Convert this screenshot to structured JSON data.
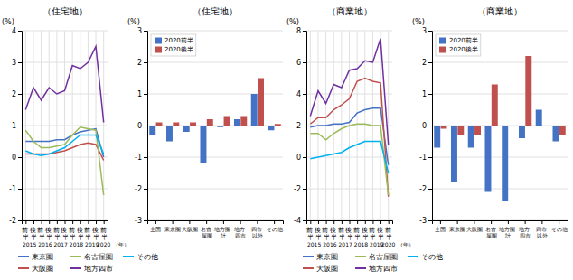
{
  "chart_data": [
    {
      "type": "line",
      "title": "（住宅地）",
      "ylabel": "(%)",
      "xlabel": "（年）",
      "annotations": [
        "2015",
        "2016",
        "2017",
        "2018",
        "2019",
        "2020"
      ],
      "categories": [
        "前\n半",
        "後\n半",
        "前\n半",
        "後\n半",
        "前\n半",
        "後\n半",
        "前\n半",
        "後\n半",
        "前\n半",
        "後\n半",
        "前\n半"
      ],
      "series": [
        {
          "name": "東京圏",
          "color": "#4472c4",
          "values": [
            0.5,
            0.5,
            0.5,
            0.5,
            0.55,
            0.55,
            0.7,
            0.8,
            0.85,
            0.9,
            0.0
          ]
        },
        {
          "name": "大阪圏",
          "color": "#c0504d",
          "values": [
            0.1,
            0.1,
            0.1,
            0.1,
            0.15,
            0.2,
            0.3,
            0.4,
            0.45,
            0.4,
            -0.1
          ]
        },
        {
          "name": "名古屋圏",
          "color": "#9bbb59",
          "values": [
            0.85,
            0.5,
            0.3,
            0.3,
            0.35,
            0.4,
            0.7,
            0.95,
            0.9,
            0.85,
            -1.2
          ]
        },
        {
          "name": "地方四市",
          "color": "#7030a0",
          "values": [
            1.5,
            2.2,
            1.8,
            2.2,
            2.0,
            2.1,
            2.9,
            2.8,
            3.0,
            3.5,
            1.1
          ]
        },
        {
          "name": "その他",
          "color": "#00b0f0",
          "values": [
            0.2,
            0.1,
            0.05,
            0.1,
            0.2,
            0.3,
            0.5,
            0.7,
            0.7,
            0.7,
            0.1
          ]
        }
      ],
      "ylim": [
        -2,
        4
      ],
      "yticks": [
        -2,
        -1,
        0,
        1,
        2,
        3,
        4
      ],
      "grid": true,
      "legend": "bottom"
    },
    {
      "type": "bar",
      "title": "（住宅地）",
      "ylabel": "(%)",
      "categories": [
        "全国",
        "東京圏",
        "大阪圏",
        "名古\n屋圏",
        "地方圏\n計",
        "地方\n四市",
        "四市\n以外",
        "その他"
      ],
      "series": [
        {
          "name": "2020前半",
          "color": "#4472c4",
          "values": [
            -0.3,
            -0.5,
            -0.2,
            -1.2,
            -0.05,
            0.2,
            1.0,
            -0.15
          ]
        },
        {
          "name": "2020後半",
          "color": "#c0504d",
          "values": [
            0.1,
            0.1,
            0.1,
            0.2,
            0.3,
            0.3,
            1.5,
            0.05
          ]
        }
      ],
      "ylim": [
        -3,
        3
      ],
      "yticks": [
        -3,
        -2,
        -1,
        0,
        1,
        2,
        3
      ],
      "grid": "y",
      "legend": "upper left"
    },
    {
      "type": "line",
      "title": "（商業地）",
      "ylabel": "(%)",
      "xlabel": "（年）",
      "annotations": [
        "2015",
        "2016",
        "2017",
        "2018",
        "2019",
        "2020"
      ],
      "categories": [
        "前\n半",
        "後\n半",
        "前\n半",
        "後\n半",
        "前\n半",
        "後\n半",
        "前\n半",
        "後\n半",
        "前\n半",
        "後\n半",
        "前\n半"
      ],
      "series": [
        {
          "name": "東京圏",
          "color": "#4472c4",
          "values": [
            1.9,
            2.0,
            2.0,
            2.1,
            2.1,
            2.2,
            2.8,
            3.0,
            3.1,
            3.1,
            -0.5
          ]
        },
        {
          "name": "大阪圏",
          "color": "#c0504d",
          "values": [
            2.1,
            2.5,
            2.5,
            3.0,
            3.3,
            3.7,
            4.8,
            5.0,
            4.8,
            4.7,
            -2.5
          ]
        },
        {
          "name": "名古屋圏",
          "color": "#9bbb59",
          "values": [
            1.5,
            1.5,
            1.1,
            1.5,
            1.8,
            2.0,
            2.1,
            2.1,
            2.0,
            2.0,
            -2.4
          ]
        },
        {
          "name": "地方四市",
          "color": "#7030a0",
          "values": [
            2.6,
            4.2,
            3.4,
            4.6,
            4.4,
            5.5,
            5.6,
            6.1,
            6.0,
            7.5,
            0.8
          ]
        },
        {
          "name": "その他",
          "color": "#00b0f0",
          "values": [
            -0.1,
            0.0,
            0.1,
            0.2,
            0.3,
            0.6,
            0.8,
            1.0,
            1.0,
            1.0,
            -1.0
          ]
        }
      ],
      "ylim": [
        -4,
        8
      ],
      "yticks": [
        -4,
        -2,
        0,
        2,
        4,
        6,
        8
      ],
      "grid": true,
      "legend": "bottom"
    },
    {
      "type": "bar",
      "title": "（商業地）",
      "ylabel": "(%)",
      "categories": [
        "全国",
        "東京圏",
        "大阪圏",
        "名古\n屋圏",
        "地方圏\n計",
        "地方\n四市",
        "四市\n以外",
        "その他"
      ],
      "series": [
        {
          "name": "2020前半",
          "color": "#4472c4",
          "values": [
            -0.7,
            -1.8,
            -0.7,
            -2.1,
            -2.4,
            -0.4,
            0.5,
            -0.5
          ]
        },
        {
          "name": "2020後半",
          "color": "#c0504d",
          "values": [
            -0.1,
            -0.3,
            -0.3,
            1.3,
            0.0,
            2.2,
            0.0,
            -0.3
          ]
        }
      ],
      "ylim": [
        -3,
        3
      ],
      "yticks": [
        -3,
        -2,
        -1,
        0,
        1,
        2,
        3
      ],
      "grid": "y",
      "legend": "upper left"
    }
  ]
}
